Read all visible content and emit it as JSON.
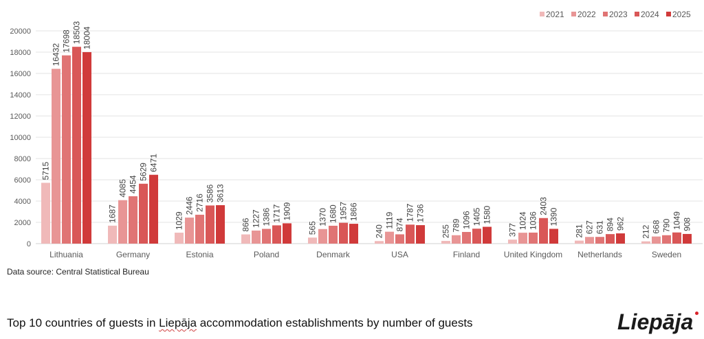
{
  "chart_data": {
    "type": "bar",
    "title": "Top 10 countries of guests in Liepāja accommodation establishments by number of guests",
    "xlabel": "",
    "ylabel": "",
    "ylim": [
      0,
      20000
    ],
    "yticks": [
      0,
      2000,
      4000,
      6000,
      8000,
      10000,
      12000,
      14000,
      16000,
      18000,
      20000
    ],
    "grid": true,
    "legend_position": "top-right",
    "categories": [
      "Lithuania",
      "Germany",
      "Estonia",
      "Poland",
      "Denmark",
      "USA",
      "Finland",
      "United Kingdom",
      "Netherlands",
      "Sweden"
    ],
    "series": [
      {
        "name": "2021",
        "color": "#f0b9b9",
        "values": [
          5715,
          1687,
          1029,
          866,
          565,
          240,
          255,
          377,
          281,
          212
        ]
      },
      {
        "name": "2022",
        "color": "#e89595",
        "values": [
          16432,
          4085,
          2446,
          1227,
          1370,
          1119,
          789,
          1024,
          627,
          668
        ]
      },
      {
        "name": "2023",
        "color": "#e07474",
        "values": [
          17698,
          4454,
          2716,
          1386,
          1680,
          874,
          1096,
          1036,
          631,
          790
        ]
      },
      {
        "name": "2024",
        "color": "#d95757",
        "values": [
          18503,
          5629,
          3586,
          1717,
          1957,
          1787,
          1405,
          2403,
          894,
          1049
        ]
      },
      {
        "name": "2025",
        "color": "#d03a3a",
        "values": [
          18004,
          6471,
          3613,
          1909,
          1866,
          1736,
          1580,
          1390,
          962,
          908
        ]
      }
    ]
  },
  "source": "Data source: Central Statistical Bureau",
  "footer": {
    "title_before": "Top 10 countries of guests in ",
    "title_word": "Liepāja",
    "title_after": " accommodation establishments by number of guests"
  },
  "logo": {
    "text": "Liepāja",
    "dot_color": "#d8232a"
  }
}
